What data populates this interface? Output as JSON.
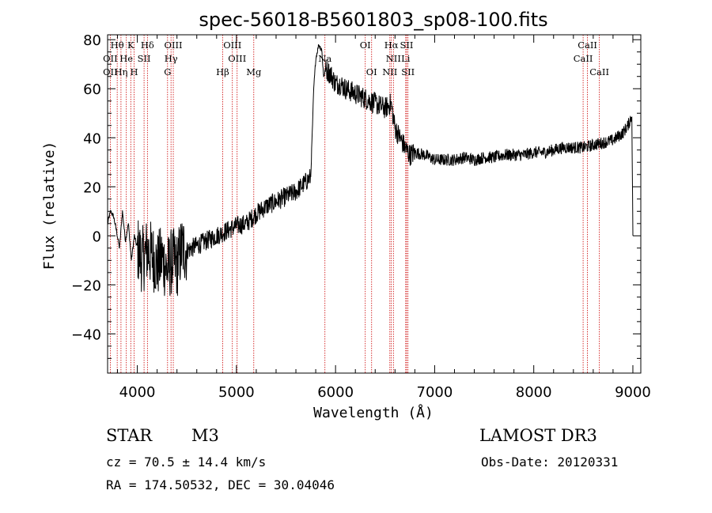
{
  "chart_data": {
    "type": "line",
    "title": "spec-56018-B5601803_sp08-100.fits",
    "xlabel": "Wavelength (Å)",
    "ylabel": "Flux (relative)",
    "xlim": [
      3700,
      9080
    ],
    "ylim": [
      -56,
      82
    ],
    "xticks": [
      4000,
      5000,
      6000,
      7000,
      8000,
      9000
    ],
    "yticks": [
      -40,
      -20,
      0,
      20,
      40,
      60,
      80
    ],
    "series": [
      {
        "name": "flux",
        "x": [
          3700,
          3730,
          3760,
          3790,
          3820,
          3850,
          3880,
          3910,
          3940,
          3970,
          4000,
          4050,
          4100,
          4150,
          4200,
          4250,
          4300,
          4350,
          4400,
          4450,
          4500,
          4600,
          4700,
          4800,
          4900,
          5000,
          5100,
          5200,
          5300,
          5400,
          5500,
          5600,
          5700,
          5750,
          5780,
          5800,
          5830,
          5860,
          5880,
          5900,
          5950,
          6000,
          6050,
          6100,
          6200,
          6300,
          6400,
          6500,
          6560,
          6600,
          6650,
          6700,
          6750,
          6800,
          6900,
          7000,
          7100,
          7200,
          7300,
          7400,
          7500,
          7600,
          7700,
          7800,
          7900,
          8000,
          8100,
          8200,
          8300,
          8400,
          8500,
          8600,
          8700,
          8800,
          8900,
          8950,
          8990,
          9000
        ],
        "values": [
          5,
          10,
          8,
          2,
          -5,
          10,
          -2,
          5,
          -10,
          0,
          -5,
          -10,
          -6,
          -8,
          -12,
          -9,
          -14,
          -10,
          -12,
          -5,
          -6,
          -4,
          -2,
          0,
          2,
          4,
          5,
          9,
          12,
          14,
          16,
          18,
          22,
          24,
          60,
          72,
          78,
          76,
          65,
          68,
          66,
          62,
          62,
          60,
          58,
          56,
          54,
          52,
          54,
          44,
          40,
          36,
          33,
          34,
          33,
          31,
          31,
          31,
          32,
          31,
          32,
          32,
          33,
          33,
          33,
          34,
          34,
          35,
          36,
          36,
          36,
          37,
          38,
          39,
          42,
          45,
          49,
          0
        ]
      }
    ],
    "spectral_lines": [
      {
        "label": "Hθ",
        "wavelength": 3797,
        "row": 1
      },
      {
        "label": "K",
        "wavelength": 3934,
        "row": 1
      },
      {
        "label": "Hδ",
        "wavelength": 4102,
        "row": 1
      },
      {
        "label": "OIII",
        "wavelength": 4363,
        "row": 1
      },
      {
        "label": "OIII",
        "wavelength": 4959,
        "row": 1
      },
      {
        "label": "OI",
        "wavelength": 6300,
        "row": 1
      },
      {
        "label": "Hα",
        "wavelength": 6563,
        "row": 1
      },
      {
        "label": "SII",
        "wavelength": 6717,
        "row": 1
      },
      {
        "label": "CaII",
        "wavelength": 8542,
        "row": 1
      },
      {
        "label": "OII",
        "wavelength": 3727,
        "row": 2
      },
      {
        "label": "He",
        "wavelength": 3889,
        "row": 2
      },
      {
        "label": "SII",
        "wavelength": 4068,
        "row": 2
      },
      {
        "label": "Hγ",
        "wavelength": 4340,
        "row": 2
      },
      {
        "label": "OIII",
        "wavelength": 5007,
        "row": 2
      },
      {
        "label": "Na",
        "wavelength": 5893,
        "row": 2
      },
      {
        "label": "NII",
        "wavelength": 6584,
        "row": 2
      },
      {
        "label": "Li",
        "wavelength": 6708,
        "row": 2
      },
      {
        "label": "CaII",
        "wavelength": 8498,
        "row": 2
      },
      {
        "label": "OII",
        "wavelength": 3727,
        "row": 3
      },
      {
        "label": "Hη",
        "wavelength": 3835,
        "row": 3
      },
      {
        "label": "H",
        "wavelength": 3968,
        "row": 3
      },
      {
        "label": "G",
        "wavelength": 4305,
        "row": 3
      },
      {
        "label": "Hβ",
        "wavelength": 4861,
        "row": 3
      },
      {
        "label": "Mg",
        "wavelength": 5175,
        "row": 3
      },
      {
        "label": "OI",
        "wavelength": 6364,
        "row": 3
      },
      {
        "label": "NII",
        "wavelength": 6548,
        "row": 3
      },
      {
        "label": "SII",
        "wavelength": 6731,
        "row": 3
      },
      {
        "label": "CaII",
        "wavelength": 8662,
        "row": 3
      }
    ],
    "line_color": "#000000",
    "marker_color": "#cc0000"
  },
  "info": {
    "object_class": "STAR",
    "subclass": "M3",
    "survey": "LAMOST DR3",
    "redshift": "cz = 70.5 ± 14.4 km/s",
    "obs_date": "Obs-Date: 20120331",
    "coords": "RA = 174.50532, DEC =  30.04046"
  }
}
